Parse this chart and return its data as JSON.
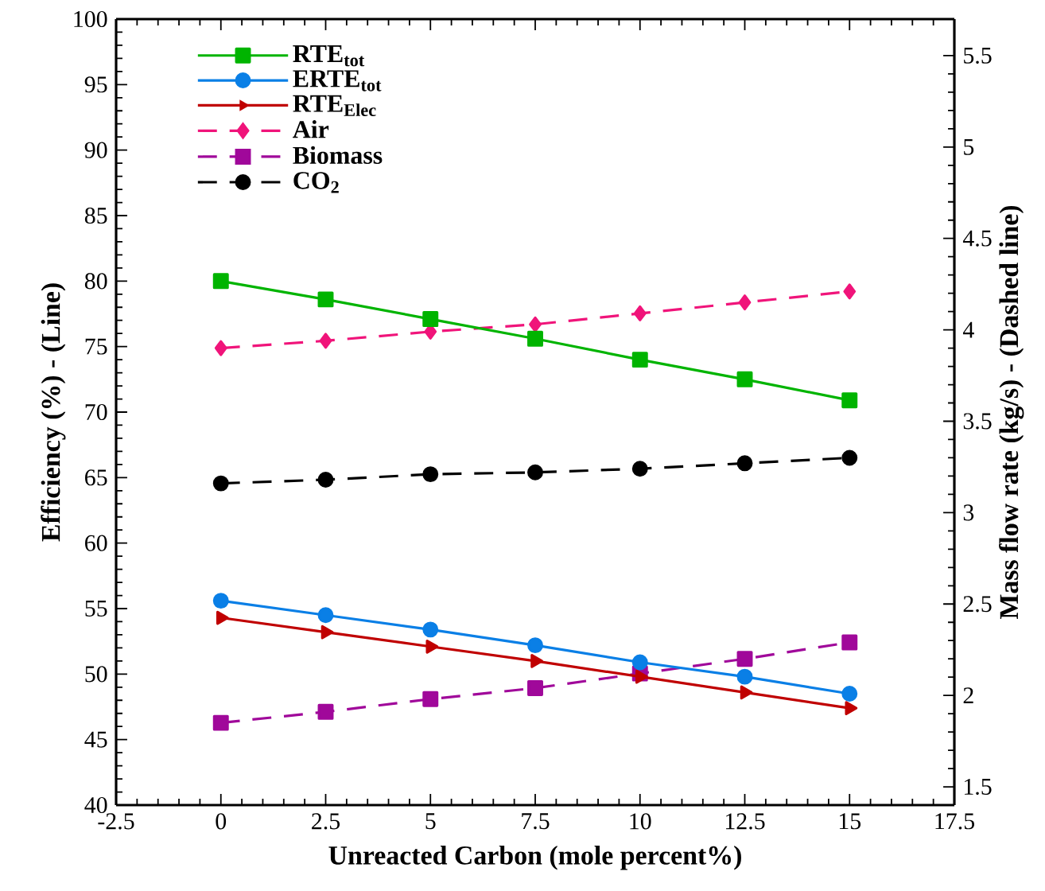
{
  "chart_data": {
    "type": "line",
    "xlabel": "Unreacted Carbon (mole percent%)",
    "ylabel": "Efficiency (%) - (Line)",
    "y2label": "Mass flow rate (kg/s) - (Dashed line)",
    "x": [
      0,
      2.5,
      5,
      7.5,
      10,
      12.5,
      15
    ],
    "xlim": [
      -2.5,
      17.5
    ],
    "xticks": [
      -2.5,
      0,
      2.5,
      5,
      7.5,
      10,
      12.5,
      15,
      17.5
    ],
    "ylim": [
      40,
      100
    ],
    "yticks": [
      40,
      45,
      50,
      55,
      60,
      65,
      70,
      75,
      80,
      85,
      90,
      95,
      100
    ],
    "y2lim": [
      1.4,
      5.7
    ],
    "y2ticks": [
      1.5,
      2,
      2.5,
      3,
      3.5,
      4,
      4.5,
      5,
      5.5
    ],
    "grid": false,
    "legend": "top left",
    "series": [
      {
        "name": "RTE$_{tot}$",
        "color": "#00b400",
        "marker": "square",
        "line_style": "solid",
        "values": [
          80,
          78.6,
          77.1,
          75.6,
          74.0,
          72.5,
          70.9
        ]
      },
      {
        "name": "ERTE$_{tot}$",
        "color": "#0a7fe6",
        "marker": "circle",
        "line_style": "solid",
        "values": [
          55.6,
          54.5,
          53.4,
          52.2,
          50.9,
          49.8,
          48.5
        ]
      },
      {
        "name": "RTE$_{Elec}$",
        "color": "#c00000",
        "marker": "triangle",
        "line_style": "solid",
        "values": [
          54.3,
          53.2,
          52.1,
          51.0,
          49.8,
          48.6,
          47.4
        ]
      },
      {
        "name": "Air",
        "color": "#f0147a",
        "marker": "diamond",
        "line_style": "dashed",
        "axis": "y2",
        "values": [
          3.9,
          3.94,
          3.99,
          4.03,
          4.09,
          4.15,
          4.21
        ]
      },
      {
        "name": "Biomass",
        "color": "#a0089a",
        "marker": "square",
        "line_style": "dashed",
        "axis": "y2",
        "values": [
          1.85,
          1.91,
          1.98,
          2.04,
          2.12,
          2.2,
          2.29
        ]
      },
      {
        "name": "CO$_{2}$",
        "color": "#000000",
        "marker": "circle",
        "line_style": "dashed",
        "axis": "y2",
        "values": [
          3.16,
          3.18,
          3.21,
          3.22,
          3.24,
          3.27,
          3.3
        ]
      }
    ]
  }
}
